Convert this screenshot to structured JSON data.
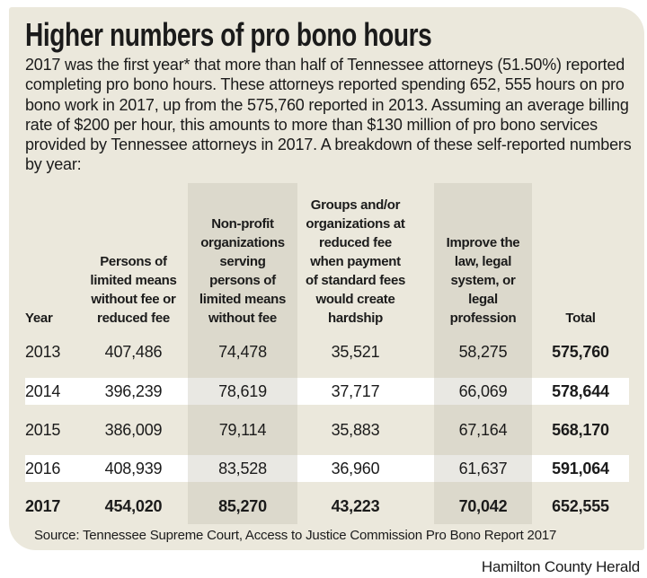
{
  "title": "Higher numbers of pro bono hours",
  "intro": "2017 was the first year* that more than half of Tennessee attorneys (51.50%) reported completing pro bono hours. These attorneys reported spending 652, 555 hours on pro bono work in 2017, up from the 575,760 reported in 2013. Assuming an average billing rate of $200 per hour, this amounts to more than $130 million of pro bono services provided by Tennessee attorneys in 2017. A breakdown of these self-reported numbers by year:",
  "source": "Source: Tennessee Supreme Court, Access to Justice Commission Pro Bono Report 2017",
  "credit": "Hamilton County Herald",
  "colors": {
    "card_bg": "#ebe8dc",
    "band": "#dcd9cc",
    "stripe": "#ffffff",
    "stripe_band": "#e9e8e3",
    "text": "#1b1b1b"
  },
  "table": {
    "headers": [
      "Year",
      "Persons of\nlimited means\nwithout fee or\nreduced fee",
      "Non-profit\norganizations\nserving\npersons of\nlimited means\nwithout fee",
      "Groups and/or\norganizations at\nreduced fee\nwhen payment\nof standard fees\nwould create\nhardship",
      "Improve the\nlaw, legal\nsystem, or\nlegal\nprofession",
      "Total"
    ],
    "rows": [
      {
        "cells": [
          "2013",
          "407,486",
          "74,478",
          "35,521",
          "58,275",
          "575,760"
        ]
      },
      {
        "cells": [
          "2014",
          "396,239",
          "78,619",
          "37,717",
          "66,069",
          "578,644"
        ]
      },
      {
        "cells": [
          "2015",
          "386,009",
          "79,114",
          "35,883",
          "67,164",
          "568,170"
        ]
      },
      {
        "cells": [
          "2016",
          "408,939",
          "83,528",
          "36,960",
          "61,637",
          "591,064"
        ]
      },
      {
        "cells": [
          "2017",
          "454,020",
          "85,270",
          "43,223",
          "70,042",
          "652,555"
        ]
      }
    ]
  },
  "chart_data": {
    "type": "table",
    "title": "Higher numbers of pro bono hours",
    "columns": [
      "Year",
      "Persons of limited means without fee or reduced fee",
      "Non-profit organizations serving persons of limited means without fee",
      "Groups and/or organizations at reduced fee when payment of standard fees would create hardship",
      "Improve the law, legal system, or legal profession",
      "Total"
    ],
    "rows": [
      [
        2013,
        407486,
        74478,
        35521,
        58275,
        575760
      ],
      [
        2014,
        396239,
        78619,
        37717,
        66069,
        578644
      ],
      [
        2015,
        386009,
        79114,
        35883,
        67164,
        568170
      ],
      [
        2016,
        408939,
        83528,
        36960,
        61637,
        591064
      ],
      [
        2017,
        454020,
        85270,
        43223,
        70042,
        652555
      ]
    ],
    "notes": "Rows for 2014 and 2016 have white highlight stripes; 2017 row is bold; columns 3 and 5 sit on gray vertical bands; Total column is bold."
  }
}
